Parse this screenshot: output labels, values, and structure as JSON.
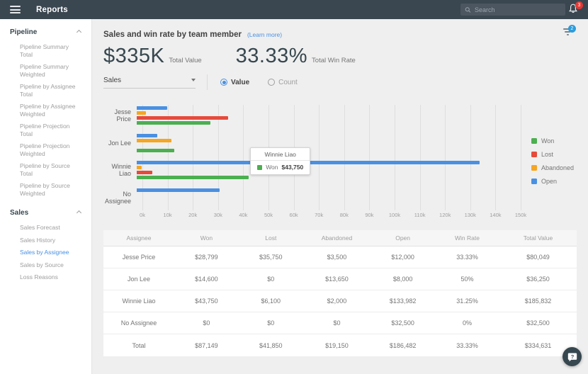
{
  "theme": {
    "accent": "#4A90E2",
    "topbar_background": "#3A4650",
    "notification_badge_red": "#E53935",
    "filter_badge_blue": "#2D9CDB"
  },
  "topbar": {
    "title": "Reports",
    "search_placeholder": "Search",
    "notification_count": "3"
  },
  "sidebar": {
    "sections": [
      {
        "label": "Pipeline",
        "items": [
          {
            "label": "Pipeline Summary Total",
            "active": false
          },
          {
            "label": "Pipeline Summary Weighted",
            "active": false
          },
          {
            "label": "Pipeline by Assignee Total",
            "active": false
          },
          {
            "label": "Pipeline by Assignee Weighted",
            "active": false
          },
          {
            "label": "Pipeline Projection Total",
            "active": false
          },
          {
            "label": "Pipeline Projection Weighted",
            "active": false
          },
          {
            "label": "Pipeline by Source Total",
            "active": false
          },
          {
            "label": "Pipeline by Source Weighted",
            "active": false
          }
        ]
      },
      {
        "label": "Sales",
        "items": [
          {
            "label": "Sales Forecast",
            "active": false
          },
          {
            "label": "Sales History",
            "active": false
          },
          {
            "label": "Sales by Assignee",
            "active": true
          },
          {
            "label": "Sales by Source",
            "active": false
          },
          {
            "label": "Loss Reasons",
            "active": false
          }
        ]
      }
    ]
  },
  "report": {
    "title": "Sales and win rate by team member",
    "learn_more": "(Learn more)",
    "filter_badge": "2",
    "metrics": [
      {
        "value": "$335K",
        "label": "Total Value"
      },
      {
        "value": "33.33%",
        "label": "Total Win Rate"
      }
    ],
    "controls": {
      "dropdown_value": "Sales",
      "radios": [
        {
          "label": "Value",
          "selected": true
        },
        {
          "label": "Count",
          "selected": false
        }
      ]
    }
  },
  "chart_data": {
    "type": "bar",
    "orientation": "horizontal",
    "title": "Sales and win rate by team member",
    "categories": [
      "Jesse Price",
      "Jon Lee",
      "Winnie Liao",
      "No Assignee"
    ],
    "series": [
      {
        "name": "Open",
        "color": "#4A90E2",
        "values": [
          12000,
          8000,
          133982,
          32500
        ]
      },
      {
        "name": "Abandoned",
        "color": "#F5A623",
        "values": [
          3500,
          13650,
          2000,
          0
        ]
      },
      {
        "name": "Lost",
        "color": "#E64A3B",
        "values": [
          35750,
          0,
          6100,
          0
        ]
      },
      {
        "name": "Won",
        "color": "#4CAF50",
        "values": [
          28799,
          14600,
          43750,
          0
        ]
      }
    ],
    "legend": [
      {
        "label": "Won",
        "color": "#4CAF50"
      },
      {
        "label": "Lost",
        "color": "#E64A3B"
      },
      {
        "label": "Abandoned",
        "color": "#F5A623"
      },
      {
        "label": "Open",
        "color": "#4A90E2"
      }
    ],
    "legend_position": "right",
    "grid": true,
    "xlim": [
      0,
      150000
    ],
    "x_ticks": [
      "0k",
      "10k",
      "20k",
      "30k",
      "40k",
      "50k",
      "60k",
      "70k",
      "80k",
      "90k",
      "100k",
      "110k",
      "120k",
      "130k",
      "140k",
      "150k"
    ],
    "tooltip": {
      "title": "Winnie Liao",
      "series": "Won",
      "value": "$43,750",
      "color": "#4CAF50"
    }
  },
  "table": {
    "columns": [
      "Assignee",
      "Won",
      "Lost",
      "Abandoned",
      "Open",
      "Win Rate",
      "Total Value"
    ],
    "rows": [
      [
        "Jesse Price",
        "$28,799",
        "$35,750",
        "$3,500",
        "$12,000",
        "33.33%",
        "$80,049"
      ],
      [
        "Jon Lee",
        "$14,600",
        "$0",
        "$13,650",
        "$8,000",
        "50%",
        "$36,250"
      ],
      [
        "Winnie Liao",
        "$43,750",
        "$6,100",
        "$2,000",
        "$133,982",
        "31.25%",
        "$185,832"
      ],
      [
        "No Assignee",
        "$0",
        "$0",
        "$0",
        "$32,500",
        "0%",
        "$32,500"
      ],
      [
        "Total",
        "$87,149",
        "$41,850",
        "$19,150",
        "$186,482",
        "33.33%",
        "$334,631"
      ]
    ]
  }
}
